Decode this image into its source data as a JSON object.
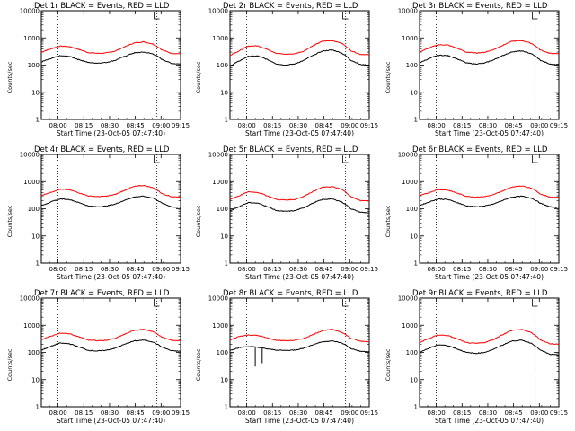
{
  "chart_data": {
    "type": "line",
    "layout": "3x3 grid",
    "y_scale": "log",
    "ylim": [
      1,
      10000
    ],
    "y_tick_labels": [
      "1",
      "10",
      "100",
      "1000",
      "10000"
    ],
    "ylabel": "Counts/sec",
    "xlabel": "Start Time (23-Oct-05 07:47:40)",
    "grid": false,
    "series_colors": {
      "events": "#000000",
      "lld": "#ff0000"
    },
    "legend_text": "BLACK = Events, RED = LLD",
    "panels": [
      {
        "title": "Det 1r  BLACK = Events, RED = LLD",
        "x_ticks": [
          "08:00",
          "08:15",
          "08:30",
          "08:45",
          "09:00",
          "09:15"
        ],
        "events": [
          130,
          170,
          220,
          210,
          160,
          125,
          118,
          125,
          150,
          210,
          280,
          300,
          260,
          160,
          115,
          110
        ],
        "lld": [
          300,
          390,
          500,
          480,
          380,
          290,
          270,
          280,
          330,
          470,
          650,
          720,
          600,
          360,
          270,
          260
        ],
        "spikes": []
      },
      {
        "title": "Det 2r  BLACK = Events, RED = LLD",
        "x_ticks": [
          "08:00",
          "08:15",
          "08:30",
          "08:45",
          "09:00",
          "09:15"
        ],
        "events": [
          90,
          140,
          210,
          215,
          160,
          110,
          100,
          110,
          150,
          230,
          330,
          360,
          280,
          150,
          105,
          100
        ],
        "lld": [
          230,
          330,
          500,
          510,
          380,
          270,
          250,
          260,
          330,
          520,
          760,
          800,
          640,
          340,
          250,
          240
        ],
        "spikes": []
      },
      {
        "title": "Det 3r  BLACK = Events, RED = LLD",
        "x_ticks": [
          "08:00",
          "08:15",
          "08:30",
          "08:45",
          "09:00",
          "09:15"
        ],
        "events": [
          120,
          170,
          230,
          225,
          170,
          120,
          110,
          118,
          155,
          225,
          310,
          330,
          265,
          150,
          108,
          105
        ],
        "lld": [
          300,
          420,
          560,
          550,
          420,
          300,
          280,
          295,
          370,
          540,
          760,
          800,
          640,
          360,
          270,
          260
        ],
        "spikes": []
      },
      {
        "title": "Det 4r  BLACK = Events, RED = LLD",
        "x_ticks": [
          "08:00",
          "08:15",
          "08:30",
          "08:45",
          "09:00",
          "09:15"
        ],
        "events": [
          130,
          175,
          230,
          220,
          170,
          128,
          118,
          125,
          150,
          205,
          270,
          290,
          250,
          160,
          118,
          112
        ],
        "lld": [
          310,
          400,
          520,
          500,
          390,
          300,
          280,
          290,
          340,
          480,
          660,
          720,
          600,
          360,
          280,
          270
        ],
        "spikes": []
      },
      {
        "title": "Det 5r  BLACK = Events, RED = LLD",
        "x_ticks": [
          "08:00",
          "08:15",
          "08:30",
          "08:45",
          "09:00",
          "09:15"
        ],
        "events": [
          80,
          120,
          170,
          160,
          120,
          85,
          80,
          85,
          110,
          165,
          220,
          230,
          180,
          100,
          75,
          70
        ],
        "lld": [
          220,
          300,
          420,
          400,
          300,
          220,
          210,
          220,
          290,
          440,
          620,
          650,
          520,
          280,
          200,
          195
        ],
        "spikes": []
      },
      {
        "title": "Det 6r  BLACK = Events, RED = LLD",
        "x_ticks": [
          "08:00",
          "08:15",
          "08:30",
          "08:45",
          "09:00",
          "09:15"
        ],
        "events": [
          130,
          175,
          230,
          220,
          170,
          128,
          118,
          125,
          150,
          205,
          270,
          290,
          250,
          160,
          118,
          112
        ],
        "lld": [
          300,
          390,
          510,
          490,
          380,
          290,
          270,
          280,
          330,
          460,
          640,
          700,
          580,
          350,
          270,
          260
        ],
        "spikes": []
      },
      {
        "title": "Det 7r  BLACK = Events, RED = LLD",
        "x_ticks": [
          "08:00",
          "08:15",
          "08:30",
          "08:45",
          "09:00",
          "09:15"
        ],
        "events": [
          120,
          165,
          220,
          210,
          160,
          120,
          112,
          120,
          145,
          200,
          265,
          285,
          245,
          155,
          115,
          110
        ],
        "lld": [
          300,
          390,
          510,
          490,
          380,
          290,
          270,
          280,
          330,
          470,
          650,
          710,
          590,
          360,
          280,
          270
        ],
        "spikes": []
      },
      {
        "title": "Det 8r  BLACK = Events, RED = LLD",
        "x_ticks": [
          "08:00",
          "08:15",
          "08:30",
          "08:45",
          "09:00",
          "09:15"
        ],
        "events": [
          120,
          150,
          165,
          155,
          135,
          122,
          118,
          122,
          145,
          195,
          250,
          265,
          225,
          140,
          110,
          105
        ],
        "lld": [
          280,
          390,
          440,
          420,
          340,
          280,
          270,
          280,
          330,
          460,
          640,
          700,
          560,
          330,
          260,
          250
        ],
        "spikes": [
          {
            "x": 0.18,
            "low": 30
          },
          {
            "x": 0.23,
            "low": 40
          }
        ]
      },
      {
        "title": "Det 9r  BLACK = Events, RED = LLD",
        "x_ticks": [
          "08:00",
          "08:15",
          "08:30",
          "08:45",
          "09:00",
          "09:15"
        ],
        "events": [
          100,
          140,
          190,
          180,
          135,
          100,
          92,
          100,
          130,
          190,
          265,
          280,
          220,
          120,
          85,
          80
        ],
        "lld": [
          230,
          320,
          440,
          420,
          320,
          230,
          215,
          230,
          300,
          460,
          660,
          700,
          540,
          290,
          210,
          200
        ],
        "spikes": []
      }
    ]
  }
}
